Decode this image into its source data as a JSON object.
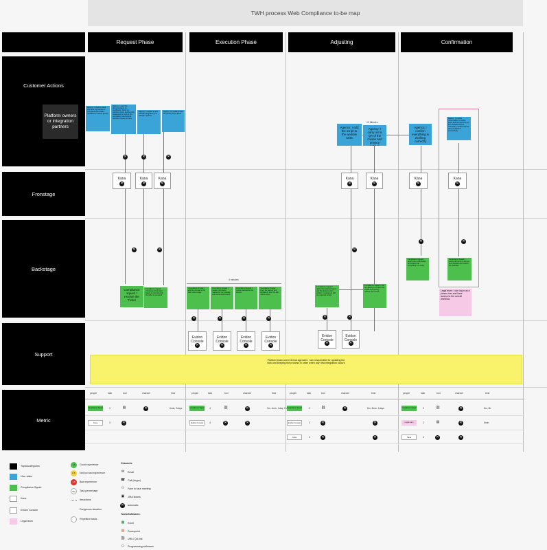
{
  "title": "TWH process Web Compliance to-be map",
  "phases": [
    "Request Phase",
    "Execution Phase",
    "Adjusting",
    "Confirmation"
  ],
  "rows": [
    "Customer Actions",
    "Fronstage",
    "Backstage",
    "Support",
    "Metric"
  ],
  "platform_owners": "Platform owners or integration partners",
  "blue_notes": [
    "Agency: I need to make sure that my website is compliant with cookie regulations / before go-live",
    "Agency: I need the documentation on certification (what my website covers and security measures) as well as the mandatory external and website request process",
    "Agency: I request a new website integration of a website' request",
    "Agency: I am able to see the priority of my ticket",
    "Agency: I add the script to the website CMS",
    "Agency: I carry out a QA of the cookie and privacy notices",
    "Agency: I confirm everything is working correctly",
    "Agency: I provide confirmation on all the items that are part of a go-live checklist and all necessary cookies checks were completed successfully"
  ],
  "adjust_time": "10 Minutes",
  "kana": "Kana",
  "evidon": "Evidon Console",
  "exec_time": "4 minutes",
  "green_notes": [
    "Compliance squad: I receive the Ticket",
    "Compliance Squad: Checking of the ticket based on the data that the ticket is reviewed",
    "Compliance Squad: I add the domain to the site notice scope",
    "Compliance Squad: I create information needed for the cookies and consent document",
    "Compliance Squad: I review translation and banner",
    "Compliance Squad: Copy the banner and translation from the site notice scope",
    "Compliance Squad: I review the scanner log to pull the domains from evidon. I review and add the required scripts",
    "Compliance Squad: I ask the agency to confirm the cookie and privacy notices are correct",
    "Compliance Squad: I review the confirmation and check that everything is in order",
    "Compliance Squad: I review all items on the go-live checklist and confirm the workflow"
  ],
  "legal_note": "Legal team: I can log in as a power user and have access to the overall workflow",
  "support_note": "Platform team and external agencies: I am responsible for updating the flow and keeping the process in order when any new integration occurs",
  "metric_headers": [
    "people",
    "task",
    "tool",
    "channel",
    "time"
  ],
  "metric_chips": {
    "cs": "Compliance Squad",
    "kana": "Kana",
    "evidon": "Evidon Console",
    "legal": "Legal team"
  },
  "metric_values": {
    "req_tasks": [
      "3",
      "3"
    ],
    "exec_tasks": [
      "4",
      "4"
    ],
    "adj_tasks": [
      "3",
      "2",
      "2"
    ],
    "conf_tasks": [
      "2",
      "2",
      "2"
    ],
    "req_time": "6min, 2days",
    "exec_time": "3m, 4min, 1day, 7min",
    "adj_time": "8m, 8min, 1days",
    "conf_time": [
      "8m, 8h",
      "8min"
    ]
  },
  "legend_categories": [
    "Topics/categories",
    "User tasks",
    "Compliance Squad",
    "Kana",
    "Evidon Console",
    "Legal team"
  ],
  "legend_experience": [
    "Good experience",
    "Not too bad experience",
    "Bad experience",
    "Task percentage",
    "Iteractions",
    "Dangerous situation",
    "Repetitive tasks"
  ],
  "legend_exp_marks": [
    "+5",
    "0.5",
    "1-5",
    "5%",
    "",
    "",
    ""
  ],
  "legend_channels_title": "Channels:",
  "legend_channels": [
    "Email",
    "Call (skype)",
    "Face to face meeting",
    "JIRA tickets",
    "automatic"
  ],
  "legend_tools_title": "Tools/Softwares:",
  "legend_tools": [
    "Excel",
    "Powerpoint",
    "URL// QA link",
    "Programming softwares"
  ],
  "colors": {
    "black": "#000000",
    "blue": "#3aa3d8",
    "green": "#4cbf4c",
    "pink": "#f6c9e6",
    "yellow": "#f8f36a",
    "grey": "#e4e4e4"
  },
  "icons": [
    "close-icon",
    "document-icon",
    "link-icon",
    "email-icon",
    "phone-icon",
    "people-icon",
    "ticket-icon",
    "automatic-icon",
    "excel-icon",
    "powerpoint-icon",
    "laptop-icon",
    "warning-icon"
  ]
}
